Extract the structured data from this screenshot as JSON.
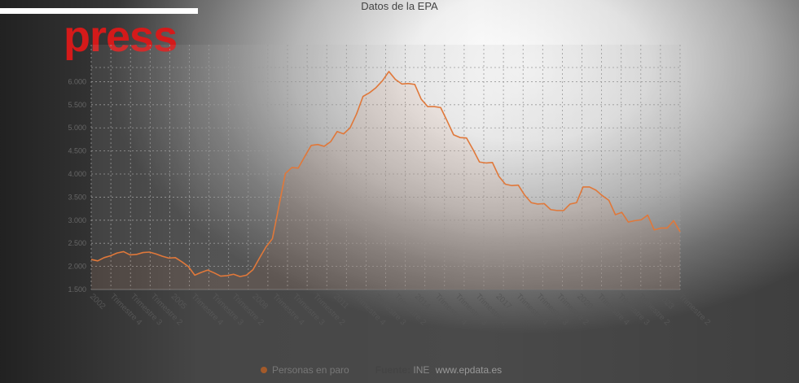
{
  "brand": {
    "text": "press"
  },
  "chart_data": {
    "type": "line",
    "title": "Datos de la EPA",
    "ylim": [
      1500,
      6800
    ],
    "yticks": [
      1500,
      2000,
      2500,
      3000,
      3500,
      4000,
      4500,
      5000,
      5500,
      6000
    ],
    "ytick_labels": [
      "1.500",
      "2.000",
      "2.500",
      "3.000",
      "3.500",
      "4.000",
      "4.500",
      "5.000",
      "5.500",
      "6.000"
    ],
    "x_tick_labels": [
      "2002",
      "Trimestre 4",
      "Trimestre 3",
      "Trimestre 2",
      "2005",
      "Trimestre 4",
      "Trimestre 3",
      "Trimestre 2",
      "2008",
      "Trimestre 4",
      "Trimestre 3",
      "Trimestre 2",
      "2011",
      "Trimestre 4",
      "Trimestre 3",
      "Trimestre 2",
      "2014",
      "Trimestre 4",
      "Trimestre 3",
      "Trimestre 2",
      "2017",
      "Trimestre 4",
      "Trimestre 3",
      "Trimestre 2",
      "2020",
      "Trimestre 4",
      "Trimestre 3",
      "Trimestre 2",
      "2023",
      "Trimestre 2"
    ],
    "grid": true,
    "legend_position": "bottom",
    "series": [
      {
        "name": "Personas en paro",
        "color": "#e0783a",
        "values": [
          2150,
          2120,
          2190,
          2230,
          2290,
          2320,
          2250,
          2260,
          2300,
          2310,
          2270,
          2220,
          2180,
          2190,
          2100,
          2000,
          1810,
          1870,
          1920,
          1860,
          1790,
          1800,
          1830,
          1780,
          1810,
          1930,
          2180,
          2420,
          2600,
          3300,
          4010,
          4140,
          4130,
          4380,
          4620,
          4640,
          4600,
          4700,
          4920,
          4870,
          5000,
          5300,
          5680,
          5760,
          5870,
          6020,
          6220,
          6050,
          5950,
          5960,
          5940,
          5620,
          5460,
          5460,
          5440,
          5150,
          4850,
          4790,
          4780,
          4530,
          4260,
          4240,
          4250,
          3950,
          3780,
          3750,
          3760,
          3540,
          3380,
          3350,
          3360,
          3230,
          3210,
          3210,
          3350,
          3380,
          3720,
          3720,
          3650,
          3530,
          3430,
          3120,
          3170,
          2960,
          2990,
          3010,
          3110,
          2790,
          2830,
          2830,
          2990,
          2750
        ]
      }
    ]
  },
  "footer": {
    "legend_label": "Personas en paro",
    "source_label": "Fuente:",
    "source_value": "INE",
    "source_link": "www.epdata.es"
  }
}
